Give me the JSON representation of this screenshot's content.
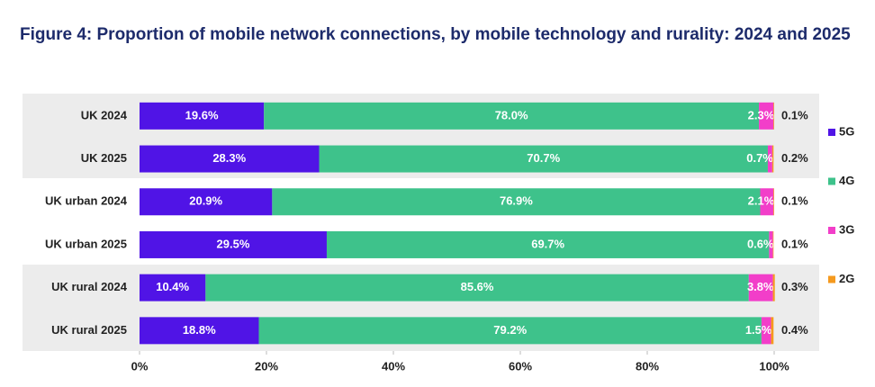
{
  "chart_data": {
    "type": "stacked-bar-horizontal",
    "title": "Figure 4: Proportion of mobile network connections, by mobile technology and rurality: 2024 and 2025",
    "categories": [
      "UK 2024",
      "UK 2025",
      "UK urban 2024",
      "UK urban 2025",
      "UK rural 2024",
      "UK rural 2025"
    ],
    "series": [
      {
        "name": "5G",
        "color": "#5014e6",
        "values": [
          19.6,
          28.3,
          20.9,
          29.5,
          10.4,
          18.8
        ],
        "value_labels": [
          "19.6%",
          "28.3%",
          "20.9%",
          "29.5%",
          "10.4%",
          "18.8%"
        ]
      },
      {
        "name": "4G",
        "color": "#3ec28b",
        "values": [
          78.0,
          70.7,
          76.9,
          69.7,
          85.6,
          79.2
        ],
        "value_labels": [
          "78.0%",
          "70.7%",
          "76.9%",
          "69.7%",
          "85.6%",
          "79.2%"
        ]
      },
      {
        "name": "3G",
        "color": "#f23ec9",
        "values": [
          2.3,
          0.7,
          2.1,
          0.6,
          3.8,
          1.5
        ],
        "value_labels": [
          "2.3%",
          "0.7%",
          "2.1%",
          "0.6%",
          "3.8%",
          "1.5%"
        ]
      },
      {
        "name": "2G",
        "color": "#f59a1e",
        "values": [
          0.1,
          0.2,
          0.1,
          0.1,
          0.3,
          0.4
        ],
        "value_labels": [
          "0.1%",
          "0.2%",
          "0.1%",
          "0.1%",
          "0.3%",
          "0.4%"
        ]
      }
    ],
    "xlim": [
      0,
      100
    ],
    "xticks": [
      {
        "value": 0,
        "label": "0%"
      },
      {
        "value": 20,
        "label": "20%"
      },
      {
        "value": 40,
        "label": "40%"
      },
      {
        "value": 60,
        "label": "60%"
      },
      {
        "value": 80,
        "label": "80%"
      },
      {
        "value": 100,
        "label": "100%"
      }
    ],
    "legend": "right"
  }
}
